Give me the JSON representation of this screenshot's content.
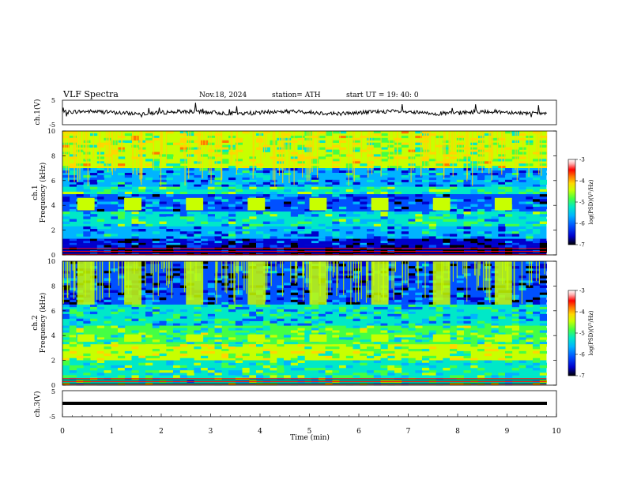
{
  "header": {
    "title": "VLF  Spectra",
    "date": "Nov.18, 2024",
    "station": "station= ATH",
    "start_ut": "start  UT  =    19: 40: 0"
  },
  "colors": {
    "background": "#ffffff",
    "trace": "#000000",
    "colormap": [
      "#000000",
      "#0000cc",
      "#0050ff",
      "#00b4ff",
      "#00e8c8",
      "#44ff44",
      "#c8ff00",
      "#ffd700",
      "#ff7700",
      "#ff0000",
      "#ffb0b0",
      "#ffffff"
    ]
  },
  "chart_data": [
    {
      "type": "line",
      "ylabel": "ch.1(V)",
      "yticks": [
        "5",
        "-5"
      ],
      "ylim": [
        -5,
        5
      ],
      "xlim": [
        0,
        10
      ],
      "series": [
        {
          "values_description": "noisy trace near 0 V",
          "x": [
            0,
            9.8
          ],
          "y": [
            0,
            0
          ]
        }
      ]
    },
    {
      "type": "heatmap",
      "ylabel": "ch.1\nFrequency (kHz)",
      "yticks": [
        "0",
        "2",
        "4",
        "6",
        "8",
        "10"
      ],
      "ylim": [
        0,
        10
      ],
      "xlim": [
        0,
        9.8
      ],
      "colorbar": {
        "label": "log(PSD)(V²/Hz)",
        "ticks": [
          "-3",
          "-4",
          "-5",
          "-6",
          "-7"
        ],
        "range": [
          -7,
          -3
        ]
      },
      "bands_khz": [
        {
          "from": 7.0,
          "to": 10.0,
          "level": -4.9
        },
        {
          "from": 5.5,
          "to": 7.0,
          "level": -6.0
        },
        {
          "from": 4.9,
          "to": 5.5,
          "level": -5.4
        },
        {
          "from": 3.5,
          "to": 4.9,
          "level": -6.2
        },
        {
          "from": 2.3,
          "to": 3.5,
          "level": -5.6
        },
        {
          "from": 1.3,
          "to": 2.3,
          "level": -6.0
        },
        {
          "from": 0.8,
          "to": 1.3,
          "level": -6.5
        },
        {
          "from": 0.0,
          "to": 0.8,
          "level": -6.8
        }
      ],
      "patches_min": [
        0.3,
        1.25,
        2.5,
        3.75,
        5.0,
        6.25,
        7.5,
        8.75
      ]
    },
    {
      "type": "heatmap",
      "ylabel": "ch.2\nFrequency (kHz)",
      "yticks": [
        "0",
        "2",
        "4",
        "6",
        "8",
        "10"
      ],
      "ylim": [
        0,
        10
      ],
      "xlim": [
        0,
        9.8
      ],
      "colorbar": {
        "label": "log(PSD)(V²/Hz)",
        "ticks": [
          "-3",
          "-4",
          "-5",
          "-6",
          "-7"
        ],
        "range": [
          -7,
          -3
        ]
      },
      "bands_khz": [
        {
          "from": 6.5,
          "to": 10.0,
          "level": -6.4
        },
        {
          "from": 4.8,
          "to": 6.5,
          "level": -5.7
        },
        {
          "from": 3.3,
          "to": 4.8,
          "level": -5.3
        },
        {
          "from": 2.0,
          "to": 3.3,
          "level": -5.0
        },
        {
          "from": 0.0,
          "to": 2.0,
          "level": -5.4
        }
      ],
      "patches_min": [
        0.3,
        1.25,
        2.5,
        3.75,
        5.0,
        6.25,
        7.5,
        8.75
      ]
    },
    {
      "type": "line",
      "ylabel": "ch.3(V)",
      "yticks": [
        "5",
        "-5"
      ],
      "ylim": [
        -5,
        5
      ],
      "xlim": [
        0,
        10
      ],
      "xlabel": "Time  (min)",
      "xticks": [
        "0",
        "1",
        "2",
        "3",
        "4",
        "5",
        "6",
        "7",
        "8",
        "9",
        "10"
      ],
      "series": [
        {
          "values_description": "flat line",
          "x": [
            0,
            9.8
          ],
          "y": [
            -2,
            -2
          ]
        }
      ]
    }
  ]
}
